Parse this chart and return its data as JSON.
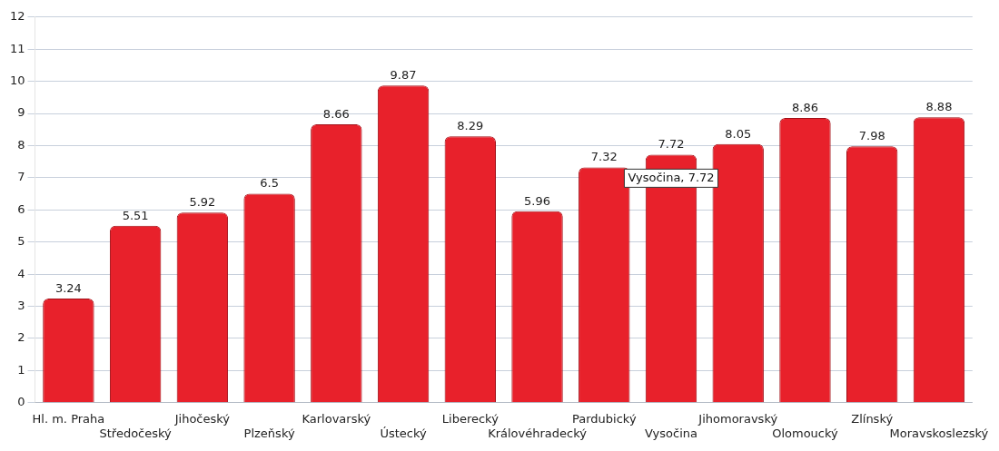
{
  "chart_data": {
    "type": "bar",
    "categories": [
      "Hl. m. Praha",
      "Středočeský",
      "Jihočeský",
      "Plzeňský",
      "Karlovarský",
      "Ústecký",
      "Liberecký",
      "Královéhradecký",
      "Pardubický",
      "Vysočina",
      "Jihomoravský",
      "Olomoucký",
      "Zlínský",
      "Moravskoslezský"
    ],
    "values": [
      3.24,
      5.51,
      5.92,
      6.5,
      8.66,
      9.87,
      8.29,
      5.96,
      7.32,
      7.72,
      8.05,
      8.86,
      7.98,
      8.88
    ],
    "color": "#e8212b",
    "ylim": [
      0,
      12
    ],
    "yticks": [
      0,
      1,
      2,
      3,
      4,
      5,
      6,
      7,
      8,
      9,
      10,
      11,
      12
    ],
    "grid": "y",
    "legend": false,
    "data_labels": true,
    "annotations": [
      {
        "text": "Vysočina, 7.72",
        "x": "Vysočina",
        "y": 7.72
      }
    ]
  }
}
